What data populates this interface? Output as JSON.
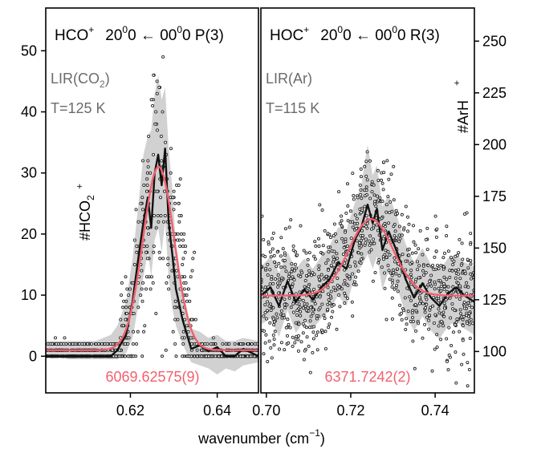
{
  "chart_data": [
    {
      "type": "scatter",
      "panel": "left",
      "title": {
        "species": "HCO",
        "charge": "+",
        "transition_parts": [
          "20",
          "0",
          "0 ← 00",
          "0",
          "0  P(3)"
        ]
      },
      "labels": {
        "matrix_base": "LIR(CO",
        "matrix_sub": "2",
        "matrix_close": ")",
        "temperature": "T=125 K",
        "fit_value": "6069.62575(9)"
      },
      "ylabel": {
        "base": "#HCO",
        "sup": "+",
        "sub": "2"
      },
      "xlim": [
        0.6005,
        0.6495
      ],
      "ylim": [
        -6,
        57
      ],
      "xticks": [
        0.62,
        0.64
      ],
      "xticklabels": [
        "0.62",
        "0.64"
      ],
      "yticks": [
        0,
        10,
        20,
        30,
        40,
        50
      ],
      "yticklabels": [
        "0",
        "10",
        "20",
        "30",
        "40",
        "50"
      ],
      "center": 0.6265,
      "amplitude": 30,
      "width_sigma": 0.0036,
      "baseline": 1,
      "mean_curve": {
        "x": [
          0.6005,
          0.608,
          0.612,
          0.6155,
          0.617,
          0.619,
          0.6205,
          0.622,
          0.623,
          0.624,
          0.6248,
          0.6256,
          0.6264,
          0.6272,
          0.628,
          0.6288,
          0.6296,
          0.6305,
          0.632,
          0.634,
          0.636,
          0.638,
          0.64,
          0.642,
          0.644,
          0.646,
          0.6495
        ],
        "y": [
          0,
          0,
          0,
          0,
          1,
          3.5,
          9,
          17,
          22,
          26,
          21,
          30,
          33,
          28,
          34,
          22,
          17,
          11,
          6,
          1.2,
          1.8,
          0.8,
          1.5,
          0,
          0,
          1.2,
          0
        ]
      },
      "band_curve": {
        "x": [
          0.6005,
          0.606,
          0.612,
          0.6155,
          0.617,
          0.619,
          0.6205,
          0.622,
          0.623,
          0.624,
          0.6248,
          0.6256,
          0.6264,
          0.6272,
          0.628,
          0.6288,
          0.6296,
          0.6305,
          0.632,
          0.634,
          0.636,
          0.638,
          0.64,
          0.642,
          0.644,
          0.646,
          0.6495
        ],
        "upper": [
          2.5,
          2.5,
          2.5,
          3.5,
          5,
          9,
          16,
          26,
          33,
          36,
          37,
          43,
          46,
          42,
          44,
          34,
          28,
          18,
          11,
          4.5,
          4,
          3,
          3.5,
          2.5,
          2.5,
          3,
          2.5
        ],
        "lower": [
          0,
          -0.5,
          -0.5,
          -0.5,
          -0.5,
          0.5,
          3,
          9,
          13,
          17,
          13,
          19,
          21,
          17,
          22,
          13,
          8,
          5,
          2,
          -1,
          -1.5,
          -2,
          -3,
          -2,
          -2.5,
          -1.5,
          -1
        ]
      }
    },
    {
      "type": "scatter",
      "panel": "right",
      "title": {
        "species": "HOC",
        "charge": "+",
        "transition_parts": [
          "20",
          "0",
          "0 ← 00",
          "0",
          "0  R(3)"
        ]
      },
      "labels": {
        "matrix_base": "LIR(Ar)",
        "matrix_sub": "",
        "matrix_close": "",
        "temperature": "T=115 K",
        "fit_value": "6371.7242(2)"
      },
      "ylabel": {
        "base": "#ArH",
        "sup": "+",
        "sub": ""
      },
      "xlim": [
        0.6987,
        0.7493
      ],
      "ylim": [
        80,
        266
      ],
      "xticks": [
        0.7,
        0.72,
        0.74
      ],
      "xticklabels": [
        "0.70",
        "0.72",
        "0.74"
      ],
      "yticks": [
        100,
        125,
        150,
        175,
        200,
        225,
        250
      ],
      "yticklabels": [
        "100",
        "125",
        "150",
        "175",
        "200",
        "225",
        "250"
      ],
      "center": 0.7248,
      "amplitude": 37,
      "width_sigma": 0.0052,
      "baseline": 127,
      "mean_curve": {
        "x": [
          0.6987,
          0.701,
          0.703,
          0.705,
          0.707,
          0.709,
          0.711,
          0.713,
          0.715,
          0.717,
          0.719,
          0.721,
          0.7225,
          0.724,
          0.7252,
          0.7262,
          0.7275,
          0.729,
          0.731,
          0.733,
          0.735,
          0.737,
          0.739,
          0.741,
          0.743,
          0.745,
          0.747,
          0.7493
        ],
        "y": [
          127,
          131,
          122,
          134,
          124,
          130,
          125,
          131,
          135,
          143,
          140,
          154,
          160,
          171,
          162,
          169,
          149,
          158,
          148,
          135,
          126,
          133,
          126,
          122,
          128,
          131,
          127,
          124
        ]
      },
      "band_curve": {
        "x": [
          0.6987,
          0.701,
          0.703,
          0.705,
          0.707,
          0.709,
          0.711,
          0.713,
          0.715,
          0.717,
          0.719,
          0.721,
          0.7225,
          0.724,
          0.7252,
          0.7262,
          0.7275,
          0.729,
          0.731,
          0.733,
          0.735,
          0.737,
          0.739,
          0.741,
          0.743,
          0.745,
          0.747,
          0.7493
        ],
        "upper": [
          141,
          146,
          138,
          148,
          140,
          145,
          140,
          146,
          151,
          160,
          159,
          172,
          180,
          200,
          185,
          190,
          170,
          176,
          165,
          152,
          143,
          150,
          142,
          139,
          145,
          147,
          143,
          141
        ],
        "lower": [
          113,
          116,
          107,
          120,
          109,
          115,
          111,
          116,
          120,
          127,
          122,
          137,
          141,
          147,
          140,
          146,
          130,
          139,
          131,
          118,
          110,
          117,
          110,
          106,
          112,
          115,
          111,
          108
        ]
      }
    }
  ],
  "xlabel": {
    "base": "wavenumber ",
    "unit_open": "(cm",
    "exp": "−1",
    "unit_close": ")"
  },
  "colors": {
    "fit": "#f2606e",
    "mean": "#111111",
    "band": "#c9c9c9",
    "points": "#222222",
    "annot": "#6b6b6b",
    "axis": "#000000"
  }
}
